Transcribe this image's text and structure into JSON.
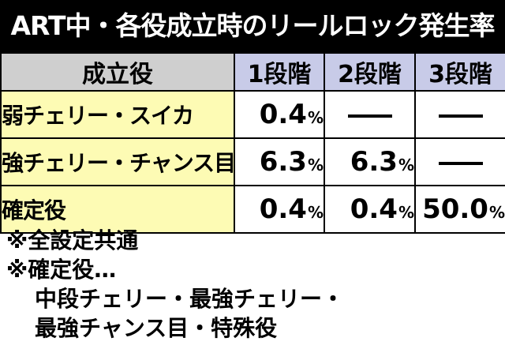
{
  "title": "ART中・各役成立時のリールロック発生率",
  "table": {
    "header": {
      "role": "成立役",
      "stages": [
        "1段階",
        "2段階",
        "3段階"
      ]
    },
    "rows": [
      {
        "role": "弱チェリー・スイカ",
        "values": [
          "0.4",
          null,
          null
        ]
      },
      {
        "role": "強チェリー・チャンス目",
        "values": [
          "6.3",
          "6.3",
          null
        ]
      },
      {
        "role": "確定役",
        "values": [
          "0.4",
          "0.4",
          "50.0"
        ]
      }
    ],
    "unit": "%"
  },
  "notes": {
    "line1": "※全設定共通",
    "line2": "※確定役…",
    "line3": "中段チェリー・最強チェリー・",
    "line4": "最強チャンス目・特殊役"
  }
}
